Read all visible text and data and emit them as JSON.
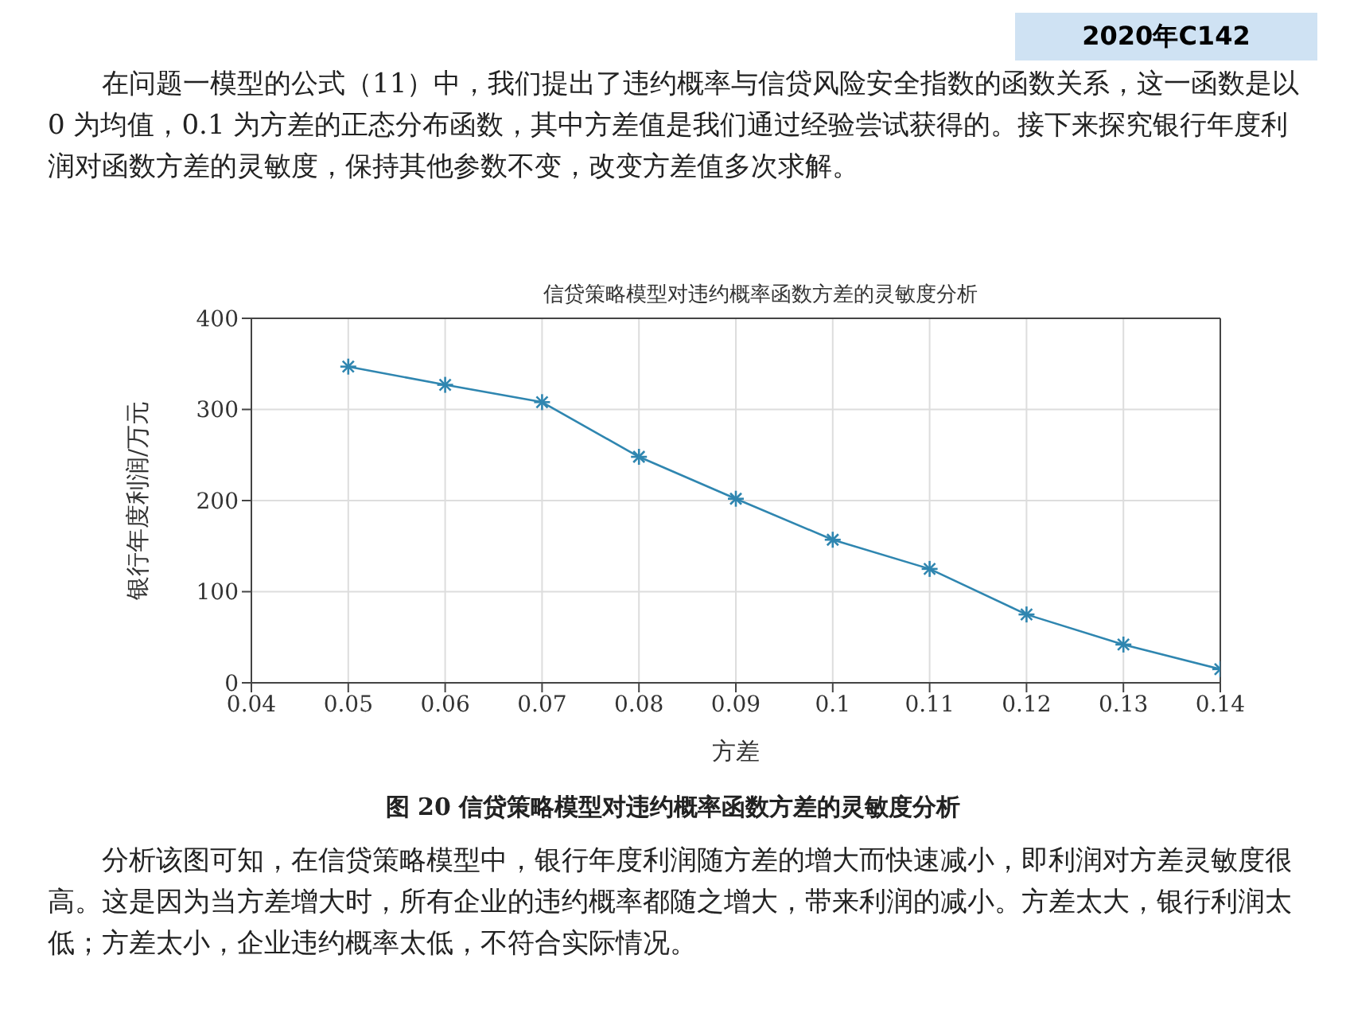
{
  "chart_data": {
    "type": "line",
    "title": "信贷策略模型对违约概率函数方差的灵敏度分析",
    "xlabel": "方差",
    "ylabel": "银行年度利润/万元",
    "x": [
      0.05,
      0.06,
      0.07,
      0.08,
      0.09,
      0.1,
      0.11,
      0.12,
      0.13,
      0.14
    ],
    "series": [
      {
        "color": "#2f86b0",
        "values": [
          347,
          327,
          308,
          248,
          202,
          157,
          125,
          75,
          42,
          15
        ]
      }
    ],
    "xlim": [
      0.04,
      0.14
    ],
    "xticks": [
      0.04,
      0.05,
      0.06,
      0.07,
      0.08,
      0.09,
      0.1,
      0.11,
      0.12,
      0.13,
      0.14
    ],
    "ylim": [
      0,
      400
    ],
    "yticks": [
      0,
      100,
      200,
      300,
      400
    ],
    "grid": true,
    "marker": "cross",
    "line_style": "solid",
    "annotations": [
      "2020年C142",
      "在问题一模型的公式（11）中，我们提出了违约概率与信贷风险安全指数的函数关系，这一函数是以 0 为均值，0.1 为方差的正态分布函数，其中方差值是我们通过经验尝试获得的。接下来探究银行年度利润对函数方差的灵敏度，保持其他参数不变，改变方差值多次求解。",
      "图 20  信贷策略模型对违约概率函数方差的灵敏度分析",
      "分析该图可知，在信贷策略模型中，银行年度利润随方差的增大而快速减小，即利润对方差灵敏度很高。这是因为当方差增大时，所有企业的违约概率都随之增大，带来利润的减小。方差太大，银行利润太低；方差太小，企业违约概率太低，不符合实际情况。"
    ]
  }
}
